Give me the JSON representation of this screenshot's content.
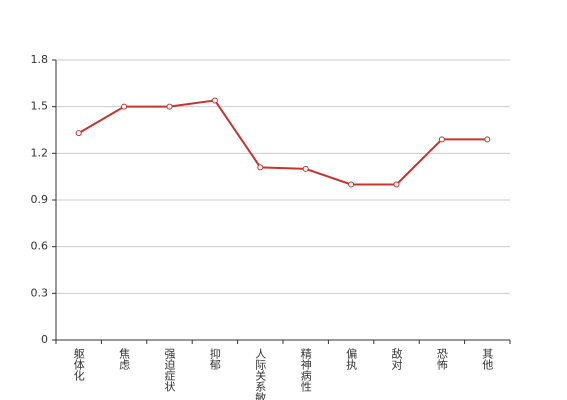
{
  "chart_data": {
    "type": "line",
    "categories": [
      "躯体化",
      "焦虑",
      "强迫症状",
      "抑郁",
      "人际关系敏感",
      "精神病性",
      "偏执",
      "敌对",
      "恐怖",
      "其他"
    ],
    "values": [
      1.33,
      1.5,
      1.5,
      1.54,
      1.11,
      1.1,
      1.0,
      1.0,
      1.29,
      1.29
    ],
    "color": "#c23531",
    "ylim": [
      0,
      1.8
    ],
    "yticks": [
      0,
      0.3,
      0.6,
      0.9,
      1.2,
      1.5,
      1.8
    ],
    "grid": true
  }
}
